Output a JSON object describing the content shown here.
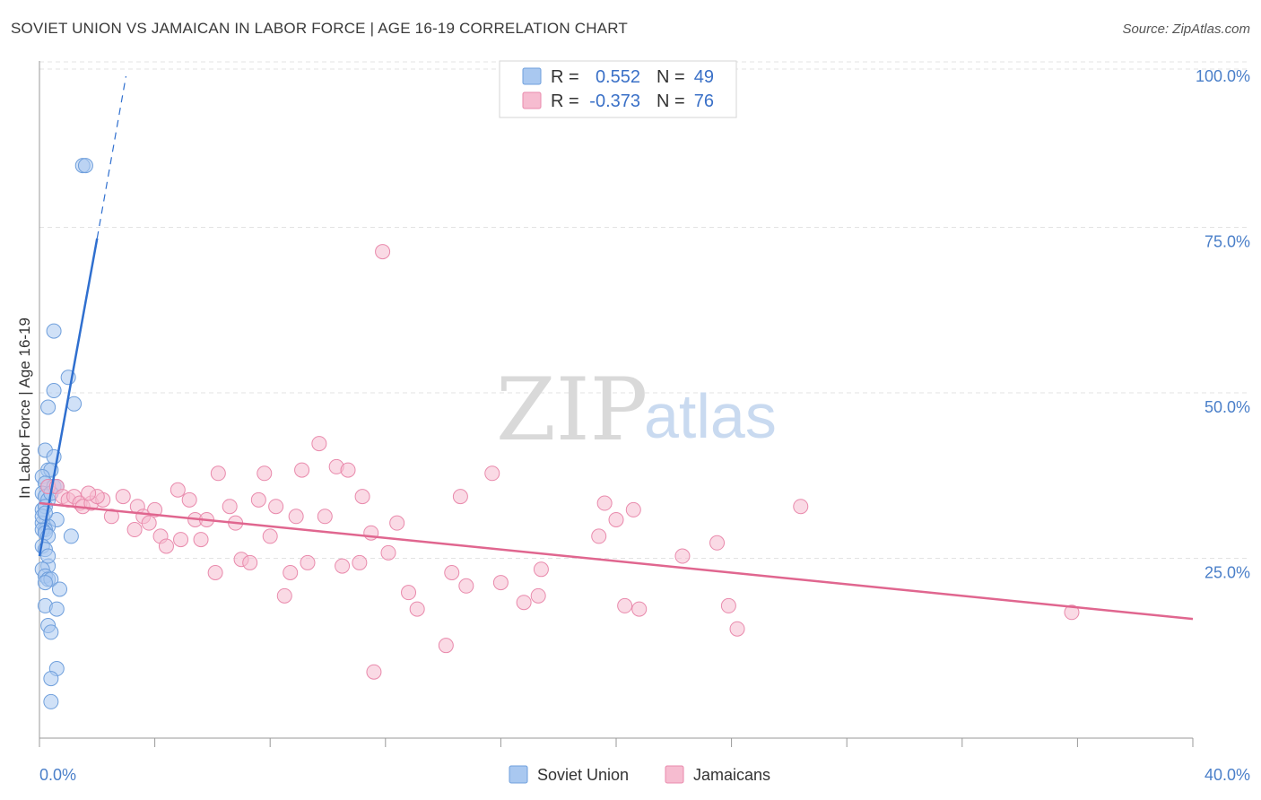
{
  "header": {
    "title": "SOVIET UNION VS JAMAICAN IN LABOR FORCE | AGE 16-19 CORRELATION CHART",
    "source": "Source: ZipAtlas.com"
  },
  "watermark": {
    "zip": "ZIP",
    "atlas": "atlas"
  },
  "legend": {
    "entries": [
      {
        "r_label": "R =",
        "r_value": "0.552",
        "n_label": "N =",
        "n_value": "49",
        "color": "#a9c8f0",
        "stroke": "#6f9fdc"
      },
      {
        "r_label": "R =",
        "r_value": "-0.373",
        "n_label": "N =",
        "n_value": "76",
        "color": "#f6bcd0",
        "stroke": "#e98aac"
      }
    ]
  },
  "bottom_legend": [
    {
      "label": "Soviet Union",
      "color": "#a9c8f0",
      "stroke": "#6f9fdc"
    },
    {
      "label": "Jamaicans",
      "color": "#f6bcd0",
      "stroke": "#e98aac"
    }
  ],
  "chart_data": {
    "type": "scatter",
    "title": "SOVIET UNION VS JAMAICAN IN LABOR FORCE | AGE 16-19 CORRELATION CHART",
    "xlabel": "",
    "ylabel": "In Labor Force | Age 16-19",
    "xlim": [
      0,
      40
    ],
    "ylim": [
      0,
      100
    ],
    "x_tick_labels": [
      "0.0%",
      "40.0%"
    ],
    "y_ticks": [
      25,
      50,
      75,
      100
    ],
    "y_tick_labels": [
      "25.0%",
      "50.0%",
      "75.0%",
      "100.0%"
    ],
    "grid": true,
    "legend_position": "top-center",
    "series": [
      {
        "name": "Soviet Union",
        "color": "#a9c8f0",
        "stroke": "#6f9fdc",
        "trend": {
          "x": [
            0.0,
            2.0
          ],
          "y": [
            27.5,
            75.5
          ],
          "dashed_to": [
            3.0,
            100.0
          ],
          "color": "#2f6fcf"
        },
        "points": [
          [
            1.5,
            86.5
          ],
          [
            1.6,
            86.5
          ],
          [
            0.5,
            61.5
          ],
          [
            1.0,
            54.5
          ],
          [
            0.5,
            52.5
          ],
          [
            1.2,
            50.5
          ],
          [
            0.3,
            50.0
          ],
          [
            0.2,
            43.5
          ],
          [
            0.5,
            42.5
          ],
          [
            0.3,
            40.5
          ],
          [
            0.4,
            40.5
          ],
          [
            0.1,
            39.5
          ],
          [
            0.2,
            38.5
          ],
          [
            0.3,
            38.0
          ],
          [
            0.5,
            38.0
          ],
          [
            0.6,
            38.0
          ],
          [
            0.1,
            37.0
          ],
          [
            0.2,
            36.5
          ],
          [
            0.3,
            36.0
          ],
          [
            0.1,
            34.5
          ],
          [
            0.6,
            33.0
          ],
          [
            0.1,
            32.5
          ],
          [
            0.3,
            32.0
          ],
          [
            0.2,
            31.5
          ],
          [
            0.1,
            31.5
          ],
          [
            0.2,
            31.0
          ],
          [
            0.3,
            30.5
          ],
          [
            1.1,
            30.5
          ],
          [
            0.1,
            29.0
          ],
          [
            0.2,
            28.5
          ],
          [
            0.3,
            26.0
          ],
          [
            0.1,
            25.5
          ],
          [
            0.2,
            24.5
          ],
          [
            0.3,
            24.0
          ],
          [
            0.4,
            24.0
          ],
          [
            0.2,
            23.5
          ],
          [
            0.7,
            22.5
          ],
          [
            0.2,
            20.0
          ],
          [
            0.6,
            19.5
          ],
          [
            0.3,
            17.0
          ],
          [
            0.4,
            16.0
          ],
          [
            0.6,
            10.5
          ],
          [
            0.4,
            9.0
          ],
          [
            0.4,
            5.5
          ],
          [
            0.2,
            35.0
          ],
          [
            0.1,
            33.5
          ],
          [
            0.3,
            27.5
          ],
          [
            0.2,
            34.0
          ],
          [
            0.4,
            37.0
          ]
        ]
      },
      {
        "name": "Jamaicans",
        "color": "#f6bcd0",
        "stroke": "#e98aac",
        "trend": {
          "x": [
            0.0,
            40.0
          ],
          "y": [
            35.5,
            18.0
          ],
          "color": "#e0668f"
        },
        "points": [
          [
            0.3,
            38.0
          ],
          [
            0.6,
            38.0
          ],
          [
            0.8,
            36.5
          ],
          [
            1.0,
            36.0
          ],
          [
            1.2,
            36.5
          ],
          [
            1.4,
            35.5
          ],
          [
            1.5,
            35.0
          ],
          [
            1.8,
            35.5
          ],
          [
            2.2,
            36.0
          ],
          [
            2.0,
            36.5
          ],
          [
            2.5,
            33.5
          ],
          [
            2.9,
            36.5
          ],
          [
            3.3,
            31.5
          ],
          [
            3.4,
            35.0
          ],
          [
            3.6,
            33.5
          ],
          [
            3.8,
            32.5
          ],
          [
            4.0,
            34.5
          ],
          [
            4.2,
            30.5
          ],
          [
            4.4,
            29.0
          ],
          [
            4.8,
            37.5
          ],
          [
            4.9,
            30.0
          ],
          [
            5.2,
            36.0
          ],
          [
            5.4,
            33.0
          ],
          [
            5.6,
            30.0
          ],
          [
            5.8,
            33.0
          ],
          [
            6.1,
            25.0
          ],
          [
            6.2,
            40.0
          ],
          [
            6.6,
            35.0
          ],
          [
            6.8,
            32.5
          ],
          [
            7.0,
            27.0
          ],
          [
            7.3,
            26.5
          ],
          [
            7.6,
            36.0
          ],
          [
            7.8,
            40.0
          ],
          [
            8.0,
            30.5
          ],
          [
            8.2,
            35.0
          ],
          [
            8.5,
            21.5
          ],
          [
            8.7,
            25.0
          ],
          [
            8.9,
            33.5
          ],
          [
            9.1,
            40.5
          ],
          [
            9.3,
            26.5
          ],
          [
            9.7,
            44.5
          ],
          [
            9.9,
            33.5
          ],
          [
            10.3,
            41.0
          ],
          [
            10.5,
            26.0
          ],
          [
            10.7,
            40.5
          ],
          [
            11.1,
            26.5
          ],
          [
            11.2,
            36.5
          ],
          [
            11.5,
            31.0
          ],
          [
            11.6,
            10.0
          ],
          [
            11.9,
            73.5
          ],
          [
            12.1,
            28.0
          ],
          [
            12.4,
            32.5
          ],
          [
            12.8,
            22.0
          ],
          [
            13.1,
            19.5
          ],
          [
            14.1,
            14.0
          ],
          [
            14.3,
            25.0
          ],
          [
            14.6,
            36.5
          ],
          [
            14.8,
            23.0
          ],
          [
            15.7,
            40.0
          ],
          [
            16.0,
            23.5
          ],
          [
            16.8,
            20.5
          ],
          [
            17.3,
            21.5
          ],
          [
            17.4,
            25.5
          ],
          [
            19.4,
            30.5
          ],
          [
            19.6,
            35.5
          ],
          [
            20.0,
            33.0
          ],
          [
            20.3,
            20.0
          ],
          [
            20.6,
            34.5
          ],
          [
            20.8,
            19.5
          ],
          [
            22.3,
            27.5
          ],
          [
            23.5,
            29.5
          ],
          [
            23.9,
            20.0
          ],
          [
            24.2,
            16.5
          ],
          [
            26.4,
            35.0
          ],
          [
            35.8,
            19.0
          ],
          [
            1.7,
            37.0
          ]
        ]
      }
    ]
  }
}
